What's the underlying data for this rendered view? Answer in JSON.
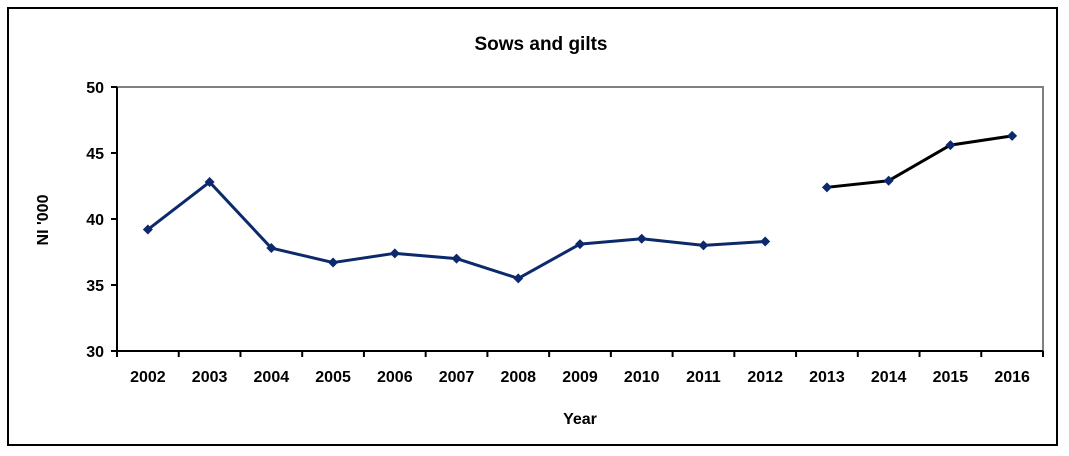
{
  "chart_data": {
    "type": "line",
    "title": "Sows and gilts",
    "xlabel": "Year",
    "ylabel": "NI '000",
    "ylim": [
      30,
      50
    ],
    "yticks": [
      30,
      35,
      40,
      45,
      50
    ],
    "categories": [
      "2002",
      "2003",
      "2004",
      "2005",
      "2006",
      "2007",
      "2008",
      "2009",
      "2010",
      "2011",
      "2012",
      "2013",
      "2014",
      "2015",
      "2016"
    ],
    "series": [
      {
        "color": "#0c2a6b",
        "values": [
          39.2,
          42.8,
          37.8,
          36.7,
          37.4,
          37.0,
          35.5,
          38.1,
          38.5,
          38.0,
          38.3,
          null,
          null,
          null,
          null
        ]
      },
      {
        "color": "#0c2a6b",
        "values": [
          null,
          null,
          null,
          null,
          null,
          null,
          null,
          null,
          null,
          null,
          null,
          42.4,
          42.9,
          45.6,
          46.3
        ]
      }
    ],
    "segment_colors": [
      "#0c2a6b",
      "#000000"
    ],
    "grid": false,
    "legend": "none",
    "plot_border_color": "#808080"
  }
}
